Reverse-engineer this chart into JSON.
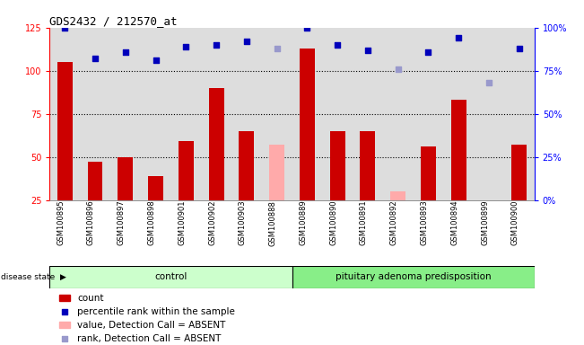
{
  "title": "GDS2432 / 212570_at",
  "samples": [
    "GSM100895",
    "GSM100896",
    "GSM100897",
    "GSM100898",
    "GSM100901",
    "GSM100902",
    "GSM100903",
    "GSM100888",
    "GSM100889",
    "GSM100890",
    "GSM100891",
    "GSM100892",
    "GSM100893",
    "GSM100894",
    "GSM100899",
    "GSM100900"
  ],
  "count_values": [
    105,
    47,
    50,
    39,
    59,
    90,
    65,
    null,
    113,
    65,
    65,
    null,
    56,
    83,
    24,
    57
  ],
  "count_absent": [
    null,
    null,
    null,
    null,
    null,
    null,
    null,
    57,
    null,
    null,
    null,
    30,
    null,
    null,
    null,
    null
  ],
  "rank_values": [
    100,
    82,
    86,
    81,
    89,
    90,
    92,
    null,
    100,
    90,
    87,
    null,
    86,
    94,
    null,
    88
  ],
  "rank_absent": [
    null,
    null,
    null,
    null,
    null,
    null,
    null,
    88,
    null,
    null,
    null,
    76,
    null,
    null,
    68,
    null
  ],
  "n_control": 8,
  "ylim_left": [
    25,
    125
  ],
  "ylim_right": [
    0,
    100
  ],
  "yticks_left": [
    25,
    50,
    75,
    100,
    125
  ],
  "yticks_right": [
    0,
    25,
    50,
    75,
    100
  ],
  "ytick_left_labels": [
    "25",
    "50",
    "75",
    "100",
    "125"
  ],
  "ytick_right_labels": [
    "0%",
    "25%",
    "50%",
    "75%",
    "100%"
  ],
  "bar_color_present": "#cc0000",
  "bar_color_absent": "#ffaaaa",
  "dot_color_present": "#0000bb",
  "dot_color_absent": "#9999cc",
  "control_bg": "#ccffcc",
  "disease_bg": "#88ee88",
  "background_color": "#dddddd",
  "bar_width": 0.5,
  "dot_size": 25
}
